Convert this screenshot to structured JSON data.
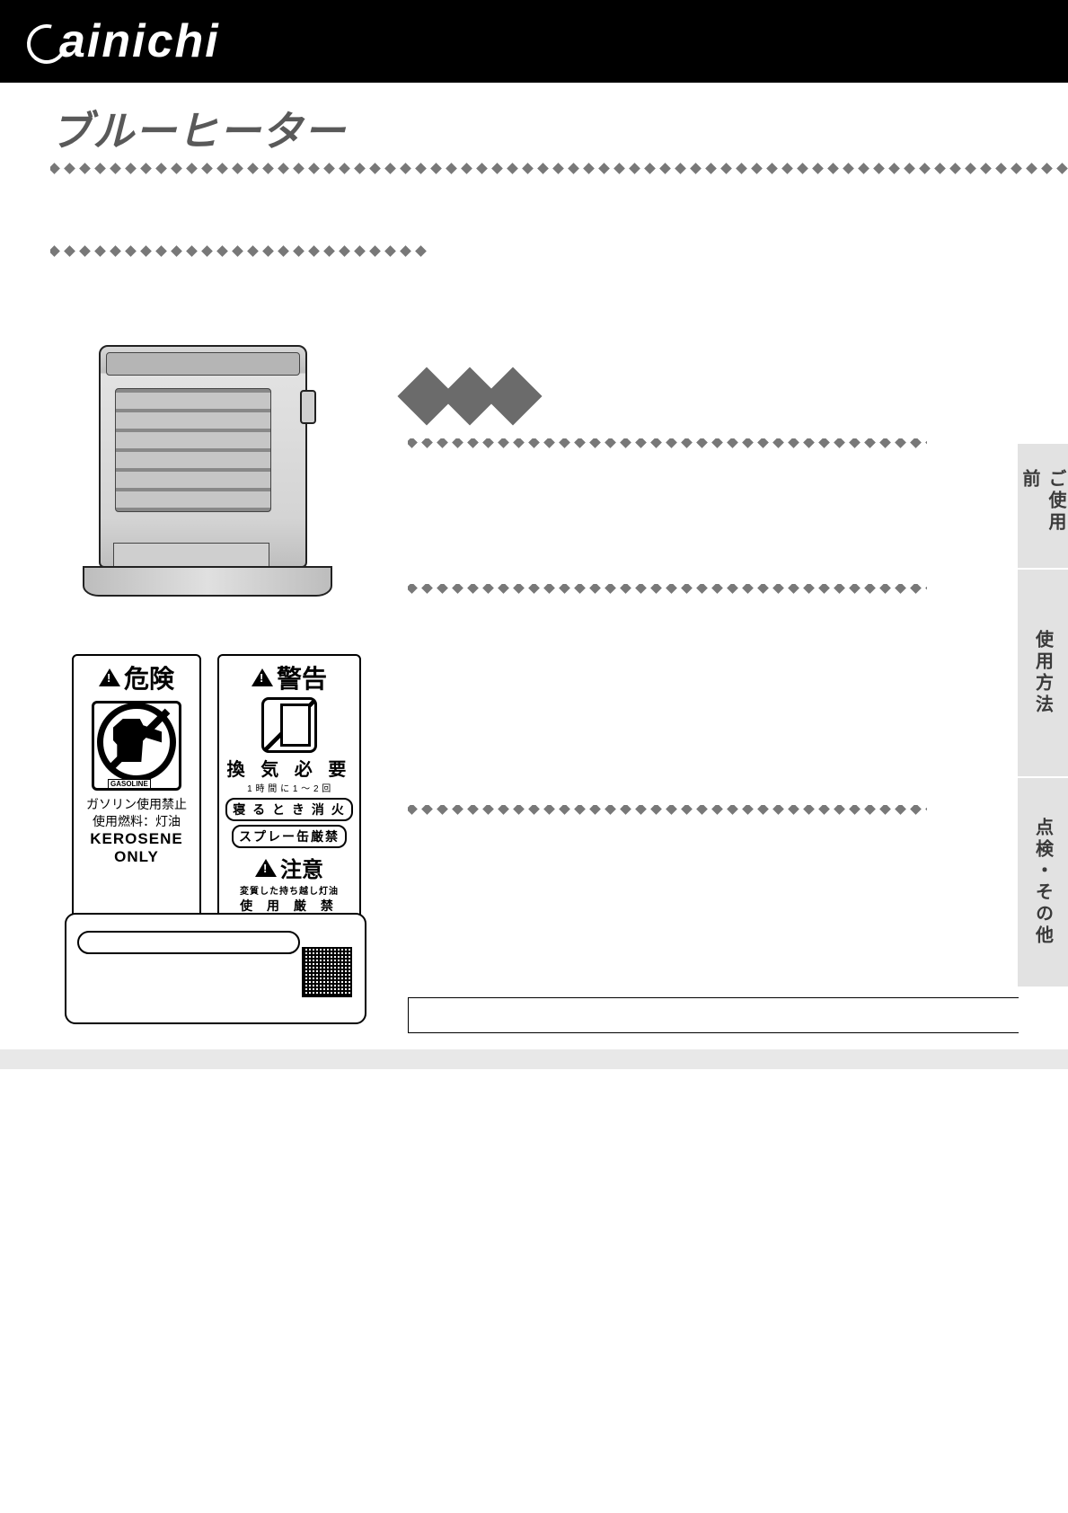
{
  "brand": "ainichi",
  "subtitle": "ブルーヒーター",
  "gasoline_tag": "GASOLINE",
  "danger": {
    "head": "危険",
    "line1": "ガソリン使用禁止",
    "line2": "使用燃料：灯油",
    "kero1": "KEROSENE",
    "kero2": "ONLY"
  },
  "warning": {
    "head": "警告",
    "vent": "換 気 必 要",
    "vent_sub": "1 時 間 に 1 ～ 2 回",
    "pill1": "寝 る と き 消 火",
    "pill2": "スプレー缶厳禁",
    "caution_head": "注意",
    "caution_sub1": "変質した持ち越し灯油",
    "caution_sub2": "使 用 厳 禁"
  },
  "tabs": {
    "t1": "ご使用前",
    "t2": "使用方法",
    "t3": "点検・その他"
  },
  "colors": {
    "diamond": "#787878",
    "big_diamond": "#6b6b6b",
    "tab_bg": "#e2e2e2",
    "tab_text": "#3a3a3a",
    "subtitle": "#595959"
  }
}
